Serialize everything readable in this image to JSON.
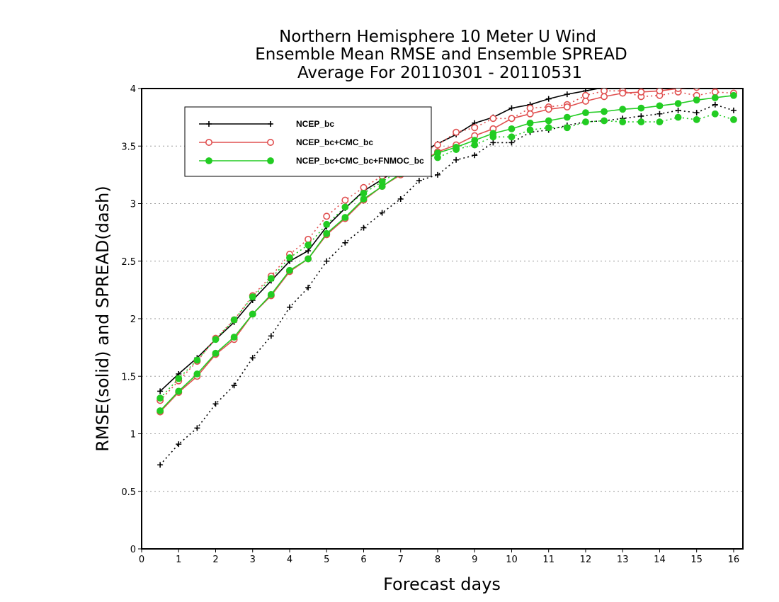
{
  "chart_data": {
    "type": "line",
    "title": [
      "Northern Hemisphere 10 Meter U Wind",
      "Ensemble Mean RMSE and Ensemble SPREAD",
      "Average For 20110301 - 20110531"
    ],
    "xlabel": "Forecast days",
    "ylabel": "RMSE(solid) and SPREAD(dash)",
    "xlim": [
      0,
      16.25
    ],
    "ylim": [
      0,
      4
    ],
    "xticks": [
      0,
      1,
      2,
      3,
      4,
      5,
      6,
      7,
      8,
      9,
      10,
      11,
      12,
      13,
      14,
      15,
      16
    ],
    "yticks": [
      0,
      0.5,
      1,
      1.5,
      2,
      2.5,
      3,
      3.5,
      4
    ],
    "ytick_labels": [
      "0",
      "0.5",
      "1",
      "1.5",
      "2",
      "2.5",
      "3",
      "3.5",
      "4"
    ],
    "grid": "horizontal dotted",
    "legend_position": "top-left",
    "x": [
      0.5,
      1,
      1.5,
      2,
      2.5,
      3,
      3.5,
      4,
      4.5,
      5,
      5.5,
      6,
      6.5,
      7,
      7.5,
      8,
      8.5,
      9,
      9.5,
      10,
      10.5,
      11,
      11.5,
      12,
      12.5,
      13,
      13.5,
      14,
      14.5,
      15,
      15.5,
      16
    ],
    "series": [
      {
        "name": "NCEP_bc",
        "color": "#000000",
        "marker": "plus",
        "rmse": [
          1.37,
          1.52,
          1.66,
          1.82,
          1.97,
          2.16,
          2.33,
          2.5,
          2.59,
          2.8,
          2.96,
          3.11,
          3.21,
          3.32,
          3.44,
          3.52,
          3.6,
          3.7,
          3.75,
          3.83,
          3.86,
          3.91,
          3.95,
          3.98,
          4.01,
          4.03,
          4.05,
          4.07,
          4.09,
          4.1,
          4.11,
          4.12
        ],
        "spread": [
          0.73,
          0.91,
          1.05,
          1.26,
          1.42,
          1.66,
          1.85,
          2.1,
          2.27,
          2.5,
          2.66,
          2.79,
          2.92,
          3.04,
          3.2,
          3.25,
          3.38,
          3.42,
          3.53,
          3.53,
          3.62,
          3.64,
          3.68,
          3.71,
          3.72,
          3.74,
          3.76,
          3.78,
          3.81,
          3.79,
          3.86,
          3.81
        ]
      },
      {
        "name": "NCEP_bc+CMC_bc",
        "color": "#e05050",
        "marker": "open-circle",
        "rmse": [
          1.19,
          1.36,
          1.5,
          1.69,
          1.82,
          2.04,
          2.2,
          2.41,
          2.52,
          2.73,
          2.87,
          3.03,
          3.15,
          3.25,
          3.35,
          3.45,
          3.51,
          3.59,
          3.65,
          3.74,
          3.78,
          3.82,
          3.84,
          3.89,
          3.93,
          3.96,
          3.97,
          3.98,
          4.0,
          4.01,
          4.02,
          4.03
        ],
        "spread": [
          1.29,
          1.46,
          1.63,
          1.83,
          1.99,
          2.2,
          2.37,
          2.56,
          2.69,
          2.89,
          3.03,
          3.14,
          3.24,
          3.33,
          3.43,
          3.51,
          3.62,
          3.66,
          3.74,
          3.74,
          3.83,
          3.84,
          3.86,
          3.94,
          3.98,
          3.98,
          3.93,
          3.94,
          3.97,
          3.94,
          3.97,
          3.96
        ]
      },
      {
        "name": "NCEP_bc+CMC_bc+FNMOC_bc",
        "color": "#22cc22",
        "marker": "filled-circle",
        "rmse": [
          1.2,
          1.37,
          1.52,
          1.7,
          1.84,
          2.04,
          2.21,
          2.42,
          2.52,
          2.74,
          2.88,
          3.04,
          3.15,
          3.26,
          3.35,
          3.44,
          3.49,
          3.55,
          3.61,
          3.65,
          3.7,
          3.72,
          3.75,
          3.79,
          3.8,
          3.82,
          3.83,
          3.85,
          3.87,
          3.9,
          3.92,
          3.94
        ],
        "spread": [
          1.31,
          1.48,
          1.64,
          1.82,
          1.99,
          2.19,
          2.35,
          2.53,
          2.64,
          2.82,
          2.97,
          3.09,
          3.19,
          3.29,
          3.37,
          3.4,
          3.47,
          3.51,
          3.58,
          3.58,
          3.64,
          3.66,
          3.66,
          3.71,
          3.72,
          3.71,
          3.71,
          3.71,
          3.75,
          3.73,
          3.78,
          3.73
        ]
      }
    ]
  }
}
